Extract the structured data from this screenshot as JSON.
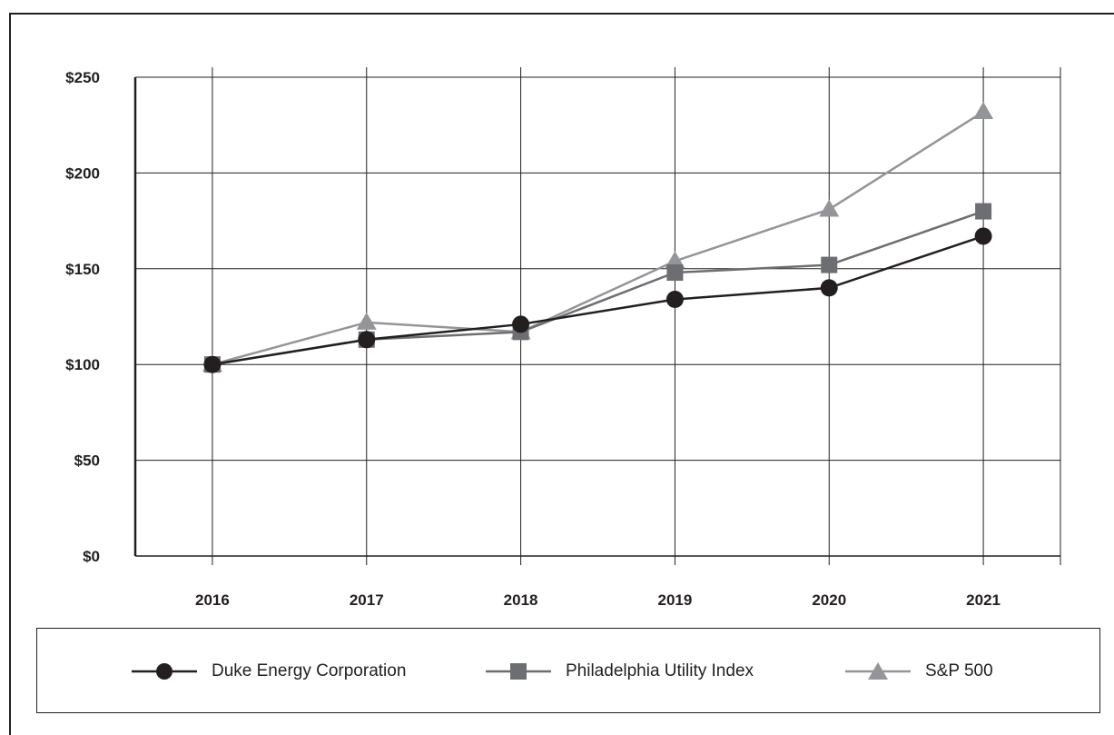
{
  "chart_data": {
    "type": "line",
    "categories": [
      "2016",
      "2017",
      "2018",
      "2019",
      "2020",
      "2021"
    ],
    "series": [
      {
        "name": "Duke Energy Corporation",
        "values": [
          100,
          113,
          121,
          134,
          140,
          167
        ],
        "color": "#231f20",
        "marker": "circle"
      },
      {
        "name": "Philadelphia Utility Index",
        "values": [
          100,
          113,
          117,
          148,
          152,
          180
        ],
        "color": "#6d6e71",
        "marker": "square"
      },
      {
        "name": "S&P 500",
        "values": [
          100,
          122,
          117,
          154,
          181,
          232
        ],
        "color": "#939598",
        "marker": "triangle"
      }
    ],
    "yticks": [
      "$0",
      "$50",
      "$100",
      "$150",
      "$200",
      "$250"
    ],
    "ytick_values": [
      0,
      50,
      100,
      150,
      200,
      250
    ],
    "ylim": [
      0,
      250
    ],
    "title": "",
    "xlabel": "",
    "ylabel": "",
    "grid": true,
    "legend_position": "bottom"
  }
}
